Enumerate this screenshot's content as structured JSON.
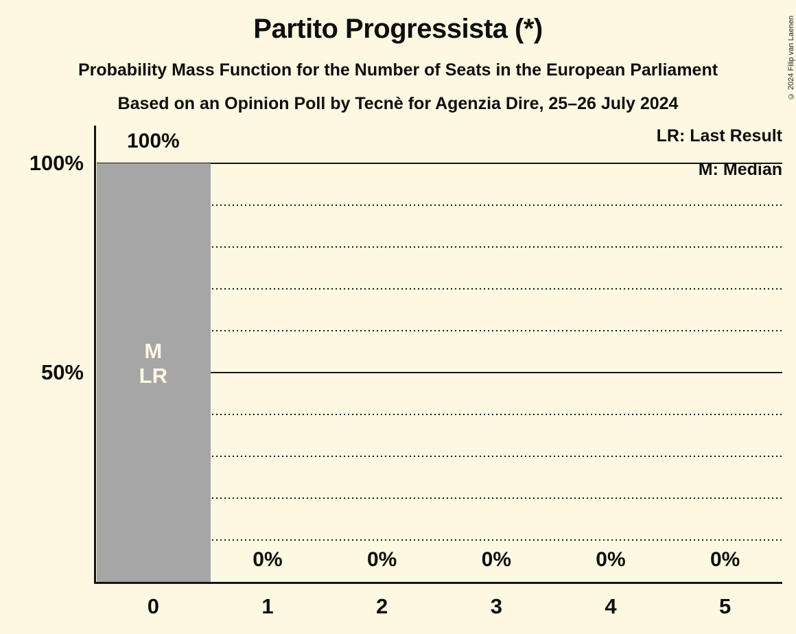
{
  "header": {
    "title": "Partito Progressista (*)",
    "subtitle1": "Probability Mass Function for the Number of Seats in the European Parliament",
    "subtitle2": "Based on an Opinion Poll by Tecnè for Agenzia Dire, 25–26 July 2024",
    "copyright": "© 2024 Filip van Laenen"
  },
  "legend": {
    "lr": "LR: Last Result",
    "m": "M: Median"
  },
  "chart_data": {
    "type": "bar",
    "title": "Partito Progressista (*)",
    "categories": [
      "0",
      "1",
      "2",
      "3",
      "4",
      "5"
    ],
    "values": [
      100,
      0,
      0,
      0,
      0,
      0
    ],
    "bar_labels": [
      "100%",
      "0%",
      "0%",
      "0%",
      "0%",
      "0%"
    ],
    "ylim": [
      0,
      100
    ],
    "yticks": [
      {
        "value": 100,
        "label": "100%"
      },
      {
        "value": 50,
        "label": "50%"
      }
    ],
    "gridlines": {
      "solid": [
        100,
        50
      ],
      "dotted": [
        90,
        80,
        70,
        60,
        40,
        30,
        20,
        10
      ]
    },
    "annotations": [
      {
        "category": "0",
        "lines": [
          "M",
          "LR"
        ]
      }
    ],
    "legend_position": "top-right",
    "grid": "horizontal; dotted every 10%, solid at 50% and 100%"
  },
  "colors": {
    "background": "#fdf8e1",
    "bar": "#a6a6a6",
    "text": "#0f0f0f",
    "line": "#141414",
    "bar_annotation": "#fdf8e1"
  }
}
